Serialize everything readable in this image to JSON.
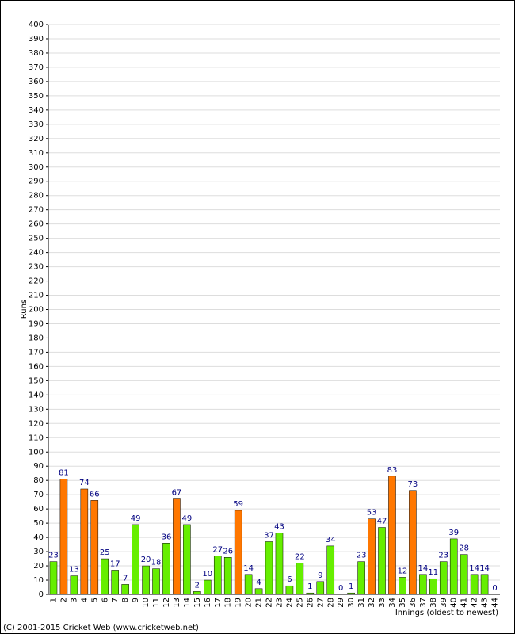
{
  "chart_data": {
    "type": "bar",
    "y_label": "Runs",
    "x_label": "Innings (oldest to newest)",
    "footer": "(C) 2001-2015 Cricket Web (www.cricketweb.net)",
    "categories": [
      "1",
      "2",
      "3",
      "4",
      "5",
      "6",
      "7",
      "8",
      "9",
      "10",
      "11",
      "12",
      "13",
      "14",
      "15",
      "16",
      "17",
      "18",
      "19",
      "20",
      "21",
      "22",
      "23",
      "24",
      "25",
      "26",
      "27",
      "28",
      "29",
      "30",
      "31",
      "32",
      "33",
      "34",
      "35",
      "36",
      "37",
      "38",
      "39",
      "40",
      "41",
      "42",
      "43",
      "44"
    ],
    "values": [
      23,
      81,
      13,
      74,
      66,
      25,
      17,
      7,
      49,
      20,
      18,
      36,
      67,
      49,
      2,
      10,
      27,
      26,
      59,
      14,
      4,
      37,
      43,
      6,
      22,
      1,
      9,
      34,
      0,
      1,
      23,
      53,
      47,
      83,
      12,
      73,
      14,
      11,
      23,
      39,
      28,
      14,
      14,
      0
    ],
    "colors": [
      "#66ee00",
      "#ff7700",
      "#66ee00",
      "#ff7700",
      "#ff7700",
      "#66ee00",
      "#66ee00",
      "#66ee00",
      "#66ee00",
      "#66ee00",
      "#66ee00",
      "#66ee00",
      "#ff7700",
      "#66ee00",
      "#66ee00",
      "#66ee00",
      "#66ee00",
      "#66ee00",
      "#ff7700",
      "#66ee00",
      "#66ee00",
      "#66ee00",
      "#66ee00",
      "#66ee00",
      "#66ee00",
      "#66ee00",
      "#66ee00",
      "#66ee00",
      "#66ee00",
      "#66ee00",
      "#66ee00",
      "#ff7700",
      "#66ee00",
      "#ff7700",
      "#66ee00",
      "#ff7700",
      "#66ee00",
      "#66ee00",
      "#66ee00",
      "#66ee00",
      "#66ee00",
      "#66ee00",
      "#66ee00",
      "#66ee00"
    ],
    "value_label_color": "#000080",
    "ylim": [
      0,
      400
    ],
    "yticks": [
      0,
      10,
      20,
      30,
      40,
      50,
      60,
      70,
      80,
      90,
      100,
      110,
      120,
      130,
      140,
      150,
      160,
      170,
      180,
      190,
      200,
      210,
      220,
      230,
      240,
      250,
      260,
      270,
      280,
      290,
      300,
      310,
      320,
      330,
      340,
      350,
      360,
      370,
      380,
      390,
      400
    ],
    "grid": true
  }
}
